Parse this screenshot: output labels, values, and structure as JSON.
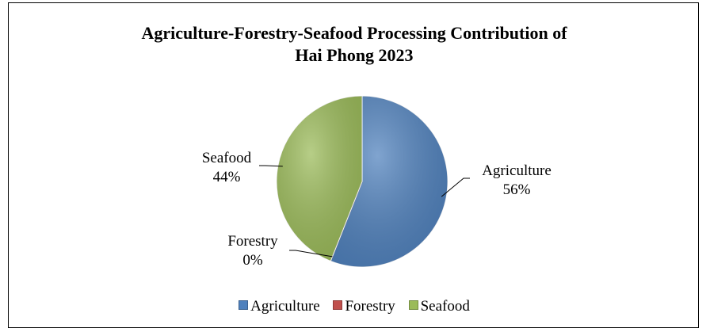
{
  "chart_data": {
    "type": "pie",
    "title_lines": [
      "Agriculture-Forestry-Seafood Processing Contribution of",
      "Hai Phong 2023"
    ],
    "categories": [
      "Agriculture",
      "Forestry",
      "Seafood"
    ],
    "values": [
      56,
      0,
      44
    ],
    "value_labels": [
      "56%",
      "0%",
      "44%"
    ],
    "colors": [
      "#4F81BD",
      "#C0504D",
      "#9BBB59"
    ],
    "legend_placement": "bottom"
  }
}
